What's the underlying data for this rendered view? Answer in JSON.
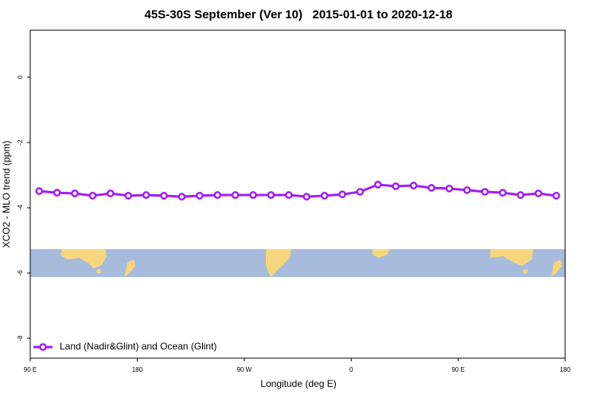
{
  "chart_data": {
    "type": "line",
    "title": "45S-30S September (Ver 10)   2015-01-01 to 2020-12-18",
    "x_label": "Longitude (deg E)",
    "y_label": "XCO2 - MLO trend (ppm)",
    "xlim": [
      90,
      540
    ],
    "xticks": [
      {
        "value": 90,
        "label": "90 E"
      },
      180,
      {
        "value": 270,
        "label": "90 W"
      },
      {
        "value": 360,
        "label": "0"
      },
      {
        "value": 450,
        "label": "90 E"
      },
      {
        "value": 540,
        "label": "180"
      }
    ],
    "ylim": [
      -8.61,
      1.44
    ],
    "yticks": [
      0,
      -2,
      -4,
      -6,
      -8
    ],
    "x": [
      97.5,
      112.5,
      127.5,
      142.5,
      157.5,
      172.5,
      187.5,
      202.5,
      217.5,
      232.5,
      247.5,
      262.5,
      277.5,
      292.5,
      307.5,
      322.5,
      337.5,
      352.5,
      367.5,
      382.5,
      397.5,
      412.5,
      427.5,
      442.5,
      457.5,
      472.5,
      487.5,
      502.5,
      517.5,
      532.5
    ],
    "series": [
      {
        "name": "Land (Nadir&Glint) and Ocean (Glint)",
        "color": "#a020f0",
        "values": [
          -3.49,
          -3.54,
          -3.56,
          -3.63,
          -3.56,
          -3.63,
          -3.61,
          -3.63,
          -3.66,
          -3.63,
          -3.61,
          -3.61,
          -3.61,
          -3.61,
          -3.61,
          -3.66,
          -3.63,
          -3.59,
          -3.51,
          -3.29,
          -3.34,
          -3.32,
          -3.39,
          -3.41,
          -3.46,
          -3.51,
          -3.54,
          -3.61,
          -3.56,
          -3.63
        ]
      }
    ],
    "legend": "bottom-left"
  }
}
